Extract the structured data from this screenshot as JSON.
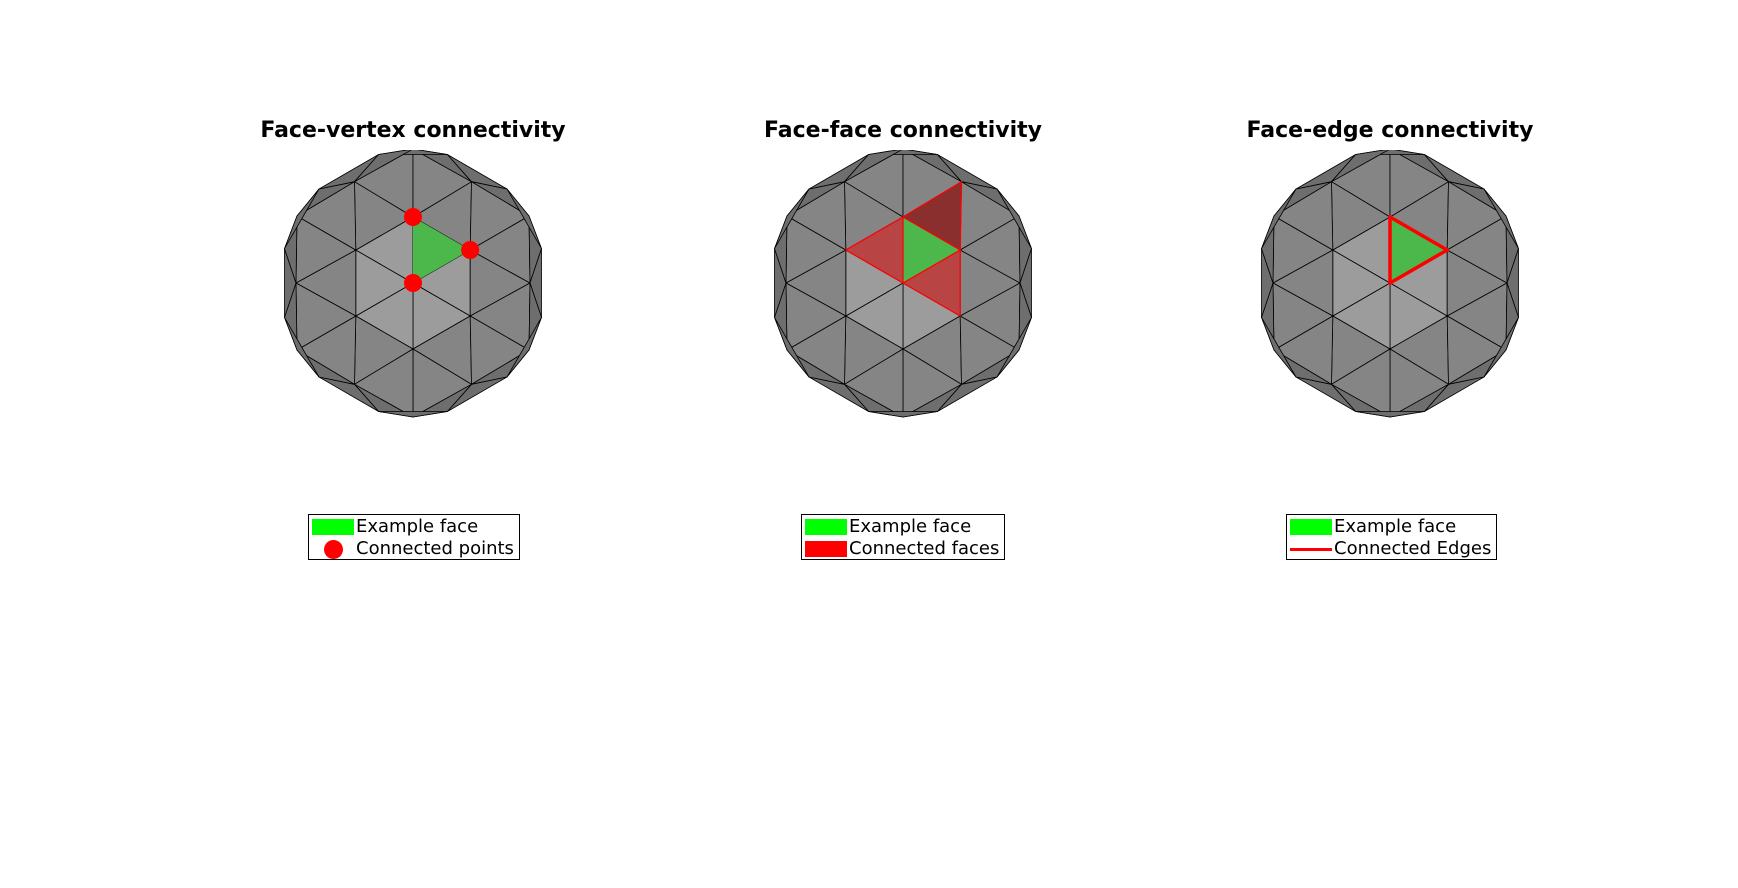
{
  "panels": [
    {
      "title": "Face-vertex connectivity",
      "legend": [
        {
          "label": "Example face",
          "symbol": "patch",
          "color": "#00ff00"
        },
        {
          "label": "Connected points",
          "symbol": "dot",
          "color": "#ff0000"
        }
      ]
    },
    {
      "title": "Face-face connectivity",
      "legend": [
        {
          "label": "Example face",
          "symbol": "patch",
          "color": "#00ff00"
        },
        {
          "label": "Connected faces",
          "symbol": "patch",
          "color": "#ff0000"
        }
      ]
    },
    {
      "title": "Face-edge connectivity",
      "legend": [
        {
          "label": "Example face",
          "symbol": "patch",
          "color": "#00ff00"
        },
        {
          "label": "Connected Edges",
          "symbol": "line",
          "color": "#ff0000"
        }
      ]
    }
  ],
  "colors": {
    "outer_face": "#6e6e6e",
    "inner_face": "#858585",
    "center_face": "#9c9c9c",
    "example_face": "#4cb84c",
    "connected_face": "#b84444",
    "connected_face_dark": "#8a2e2e",
    "highlight": "#ff0000",
    "edge": "#000000"
  }
}
